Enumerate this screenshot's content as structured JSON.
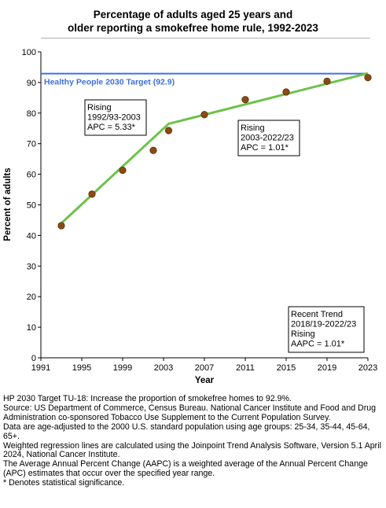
{
  "chart_data": {
    "type": "line",
    "title_lines": [
      "Percentage of adults aged 25 years and",
      "older reporting a smokefree home rule, 1992-2023"
    ],
    "xlabel": "Year",
    "ylabel": "Percent of adults",
    "xlim": [
      1991,
      2023
    ],
    "ylim": [
      0,
      100
    ],
    "x_ticks": [
      1991,
      1995,
      1999,
      2003,
      2007,
      2011,
      2015,
      2019,
      2023
    ],
    "y_ticks": [
      0,
      10,
      20,
      30,
      40,
      50,
      60,
      70,
      80,
      90,
      100
    ],
    "grid": false,
    "observed": {
      "x": [
        1993,
        1996,
        1999,
        2002,
        2003.5,
        2007,
        2011,
        2015,
        2019,
        2023
      ],
      "y": [
        43.2,
        53.5,
        61.3,
        67.8,
        74.3,
        79.5,
        84.4,
        86.9,
        90.4,
        91.6
      ],
      "color": "#8b4a12"
    },
    "trend": {
      "x": [
        1993,
        2003.5,
        2023
      ],
      "y": [
        44.0,
        76.5,
        93.0
      ],
      "color": "#6cc24a"
    },
    "target": {
      "value": 92.9,
      "label": "Healthy People 2030 Target (92.9)",
      "color": "#3b6fe0"
    },
    "annotations": [
      {
        "lines": [
          "Rising",
          "1992/93-2003",
          "APC =  5.33*"
        ]
      },
      {
        "lines": [
          "Rising",
          "2003-2022/23",
          "APC =  1.01*"
        ]
      },
      {
        "lines": [
          "Recent Trend",
          "2018/19-2022/23",
          "Rising",
          "AAPC =  1.01*"
        ]
      }
    ]
  },
  "notes": [
    "HP 2030 Target TU-18: Increase the proportion of smokefree homes to 92.9%.",
    "Source: US Department of Commerce, Census Bureau. National Cancer Institute and Food and Drug Administration co-sponsored Tobacco Use Supplement to the Current Population Survey.",
    "Data are age-adjusted to the 2000 U.S. standard population using age groups: 25-34, 35-44, 45-64, 65+.",
    "Weighted regression lines are calculated using the Joinpoint Trend Analysis Software, Version 5.1 April 2024, National Cancer Institute.",
    "The Average Annual Percent Change (AAPC) is a weighted average of the Annual Percent Change (APC) estimates that occur over the specified year range.",
    "* Denotes statistical significance."
  ]
}
